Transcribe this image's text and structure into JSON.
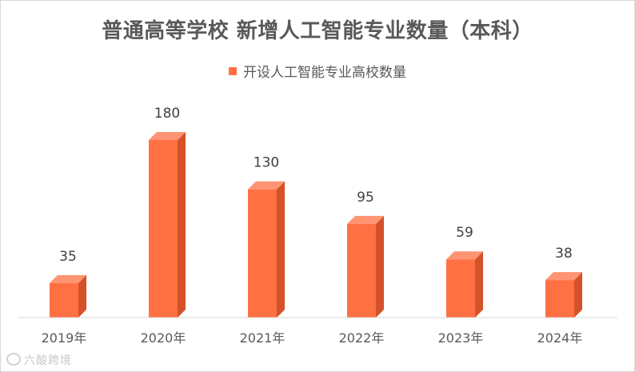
{
  "chart_data": {
    "type": "bar",
    "title": "普通高等学校 新增人工智能专业数量（本科）",
    "categories": [
      "2019年",
      "2020年",
      "2021年",
      "2022年",
      "2023年",
      "2024年"
    ],
    "series": [
      {
        "name": "开设人工智能专业高校数量",
        "values": [
          35,
          180,
          130,
          95,
          59,
          38
        ]
      }
    ],
    "ylim": [
      0,
      180
    ],
    "grid": false,
    "legend_position": "top",
    "colors": {
      "front": "#ff7043",
      "side": "#d4522a",
      "top": "#ff9472"
    }
  },
  "watermark": "六酸跨境"
}
